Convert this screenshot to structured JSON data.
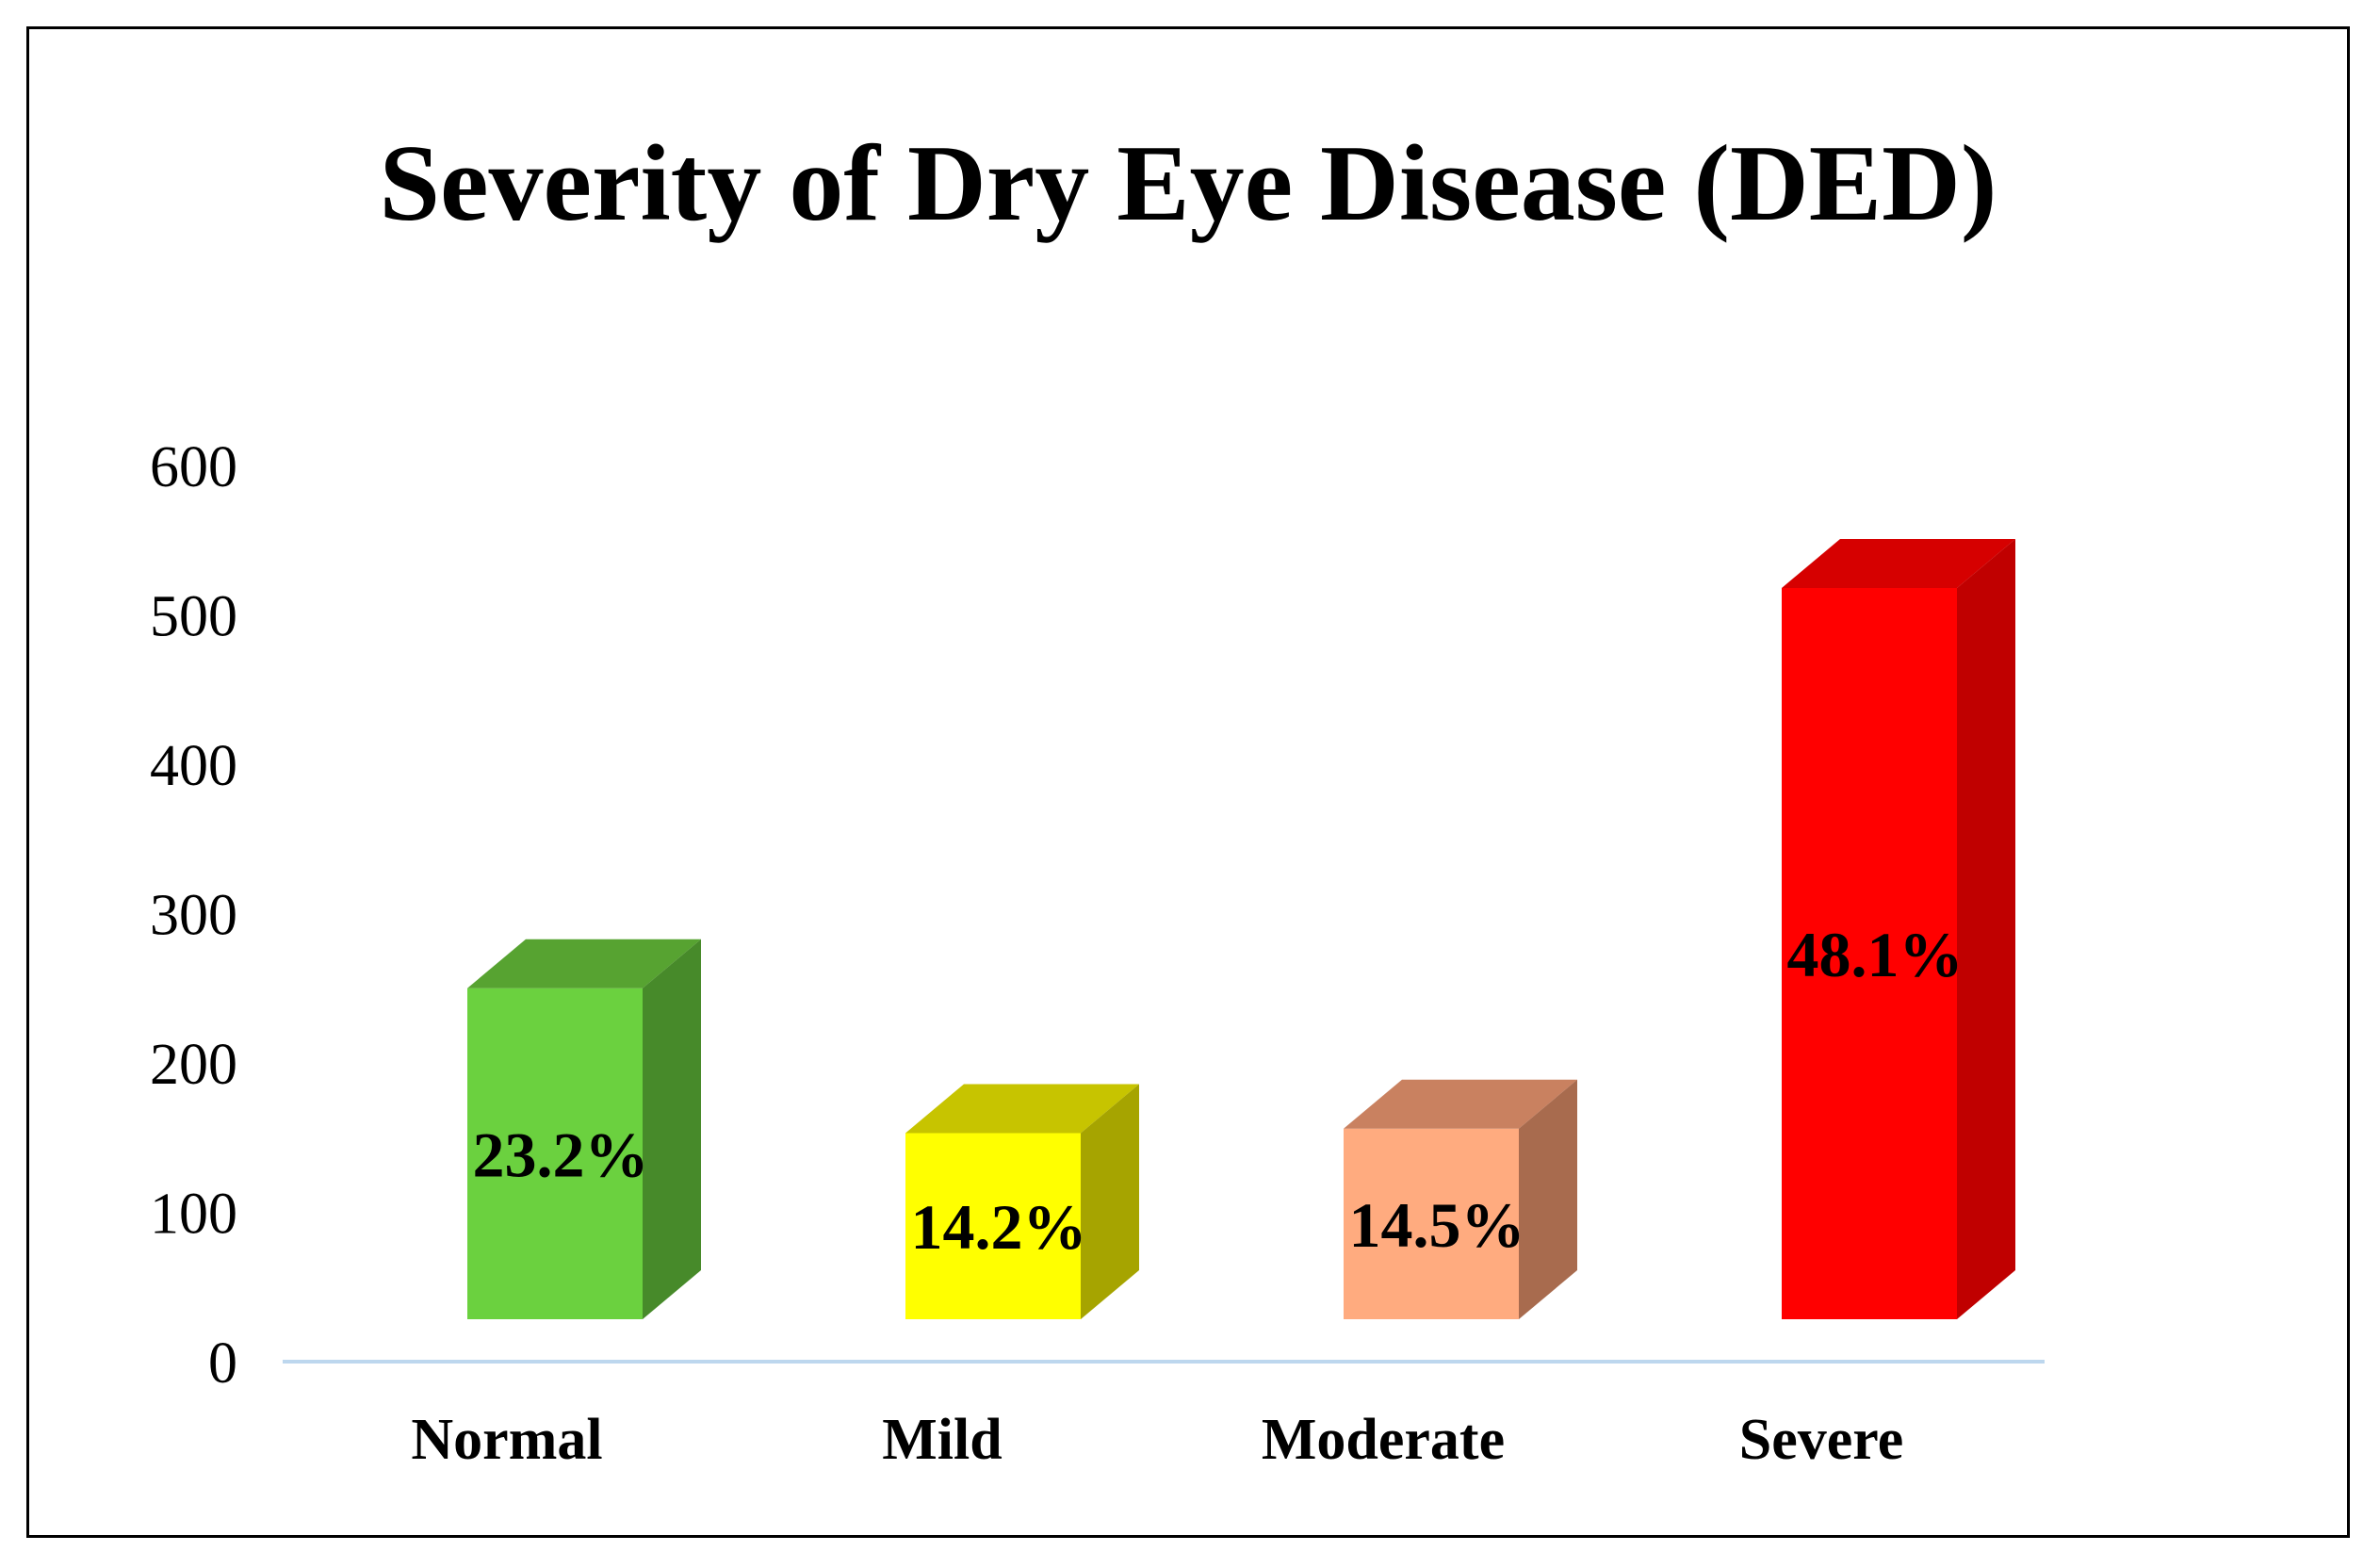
{
  "chart_data": {
    "type": "bar",
    "style": "3d-column",
    "title": "Severity of Dry Eye Disease (DED)",
    "xlabel": "",
    "ylabel": "",
    "ylim": [
      0,
      600
    ],
    "yticks": [
      0,
      100,
      200,
      300,
      400,
      500,
      600
    ],
    "grid": false,
    "legend": "none",
    "categories": [
      "Normal",
      "Mild",
      "Moderate",
      "Severe"
    ],
    "values": [
      250,
      153,
      156,
      518
    ],
    "data_labels": [
      "23.2%",
      "14.2%",
      "14.5%",
      "48.1%"
    ],
    "colors": [
      {
        "front": "#6bd13f",
        "top": "#57a331",
        "side": "#478a2a"
      },
      {
        "front": "#ffff00",
        "top": "#c7c400",
        "side": "#a6a400"
      },
      {
        "front": "#ffab7f",
        "top": "#c98160",
        "side": "#a86b4e"
      },
      {
        "front": "#ff0000",
        "top": "#d60000",
        "side": "#c00000"
      }
    ],
    "axis_color": "#bdd7ee"
  }
}
